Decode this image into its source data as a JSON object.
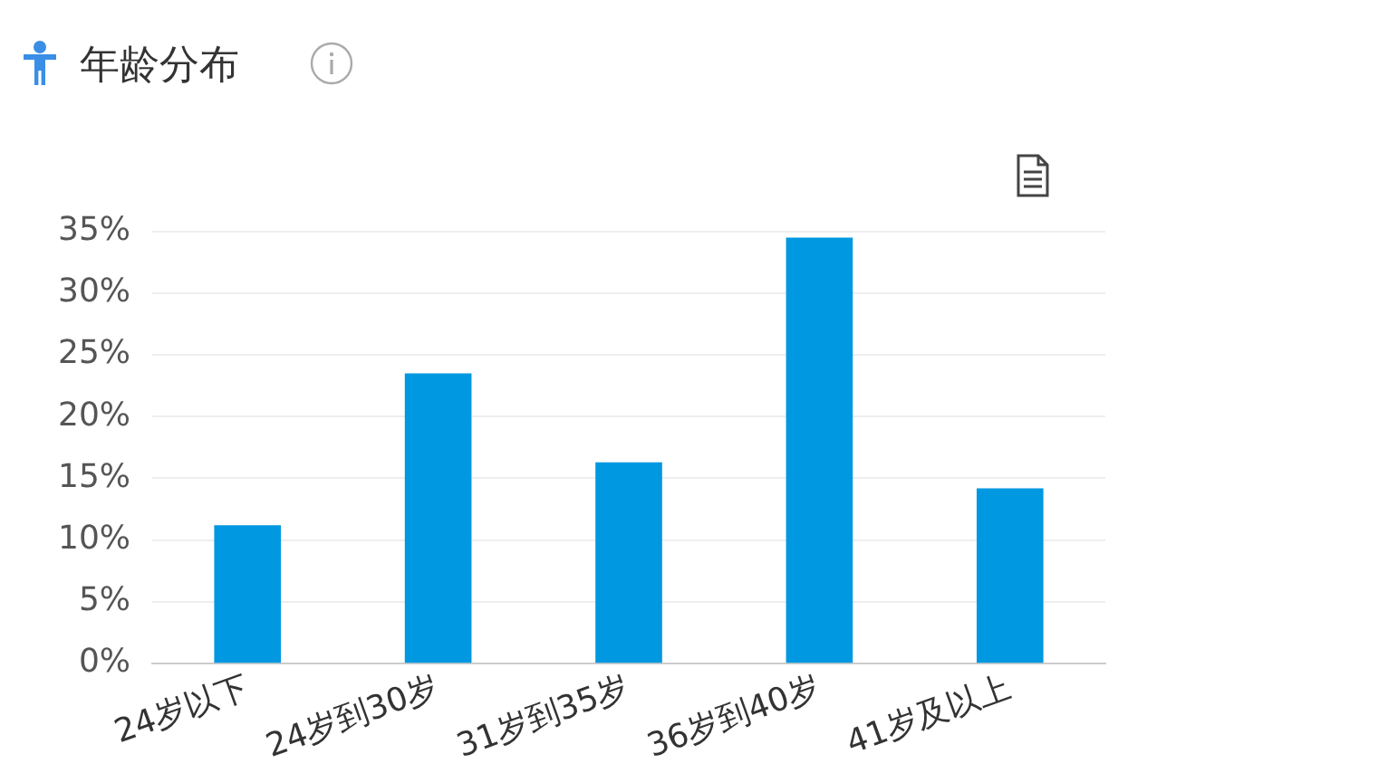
{
  "chart_data": {
    "type": "bar",
    "title": "年龄分布",
    "categories": [
      "24岁以下",
      "24岁到30岁",
      "31岁到35岁",
      "36岁到40岁",
      "41岁及以上"
    ],
    "values": [
      11.2,
      23.5,
      16.3,
      34.5,
      14.2
    ],
    "color": "#0098e0",
    "ylim": [
      0,
      35
    ],
    "yticks": [
      {
        "value": 0,
        "label": "0%"
      },
      {
        "value": 5,
        "label": "5%"
      },
      {
        "value": 10,
        "label": "10%"
      },
      {
        "value": 15,
        "label": "15%"
      },
      {
        "value": 20,
        "label": "20%"
      },
      {
        "value": 25,
        "label": "25%"
      },
      {
        "value": 30,
        "label": "30%"
      },
      {
        "value": 35,
        "label": "35%"
      }
    ],
    "grid": "y",
    "legend": false
  }
}
